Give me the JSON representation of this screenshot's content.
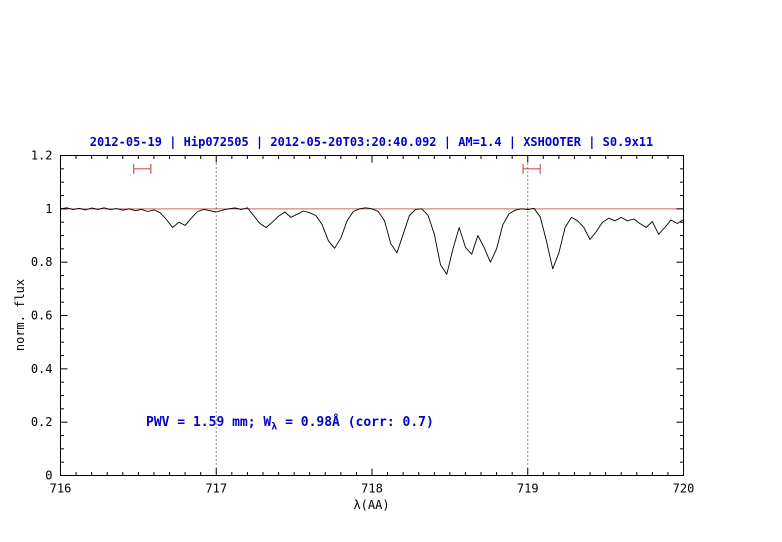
{
  "chart_data": {
    "type": "line",
    "title": "2012-05-19 | Hip072505 | 2012-05-20T03:20:40.092 | AM=1.4 | XSHOOTER | S0.9x11",
    "xlabel": "λ(AA)",
    "ylabel": "norm. flux",
    "xlim": [
      716,
      720
    ],
    "ylim": [
      0,
      1.2
    ],
    "x_ticks": [
      716,
      717,
      718,
      719,
      720
    ],
    "x_tick_labels": [
      "716",
      "717",
      "718",
      "719",
      "720"
    ],
    "y_ticks": [
      0,
      0.2,
      0.4,
      0.6,
      0.8,
      1,
      1.2
    ],
    "y_tick_labels": [
      "0",
      "0.2",
      "0.4",
      "0.6",
      "0.8",
      "1",
      "1.2"
    ],
    "grid": "off",
    "legend": "none",
    "colors": {
      "title": "#0000cc",
      "annotation": "#0000cc",
      "reference_line": "#cc6666",
      "interval_marker": "#cc5555",
      "spectrum": "#000000"
    },
    "reference_line": {
      "y": 1.0,
      "color": "#cc6666"
    },
    "dotted_vlines": [
      717,
      719
    ],
    "interval_markers": [
      {
        "x1": 716.47,
        "x2": 716.58,
        "y": 1.15
      },
      {
        "x1": 718.97,
        "x2": 719.08,
        "y": 1.15
      }
    ],
    "annotation": {
      "part1": "PWV = 1.59 mm; W",
      "sub": "λ",
      "part2": " = 0.98Å (corr: 0.7)",
      "x": 716.55,
      "y": 0.2
    },
    "series": [
      {
        "name": "spectrum",
        "color": "#000000",
        "points": [
          [
            716.0,
            1.0
          ],
          [
            716.04,
            1.004
          ],
          [
            716.08,
            0.997
          ],
          [
            716.12,
            1.002
          ],
          [
            716.16,
            0.996
          ],
          [
            716.2,
            1.003
          ],
          [
            716.24,
            0.998
          ],
          [
            716.28,
            1.004
          ],
          [
            716.32,
            0.997
          ],
          [
            716.36,
            1.001
          ],
          [
            716.4,
            0.995
          ],
          [
            716.44,
            1.0
          ],
          [
            716.48,
            0.993
          ],
          [
            716.52,
            0.998
          ],
          [
            716.56,
            0.99
          ],
          [
            716.6,
            0.996
          ],
          [
            716.64,
            0.985
          ],
          [
            716.68,
            0.96
          ],
          [
            716.72,
            0.93
          ],
          [
            716.76,
            0.95
          ],
          [
            716.8,
            0.938
          ],
          [
            716.84,
            0.965
          ],
          [
            716.88,
            0.99
          ],
          [
            716.92,
            0.998
          ],
          [
            716.96,
            0.993
          ],
          [
            717.0,
            0.988
          ],
          [
            717.04,
            0.995
          ],
          [
            717.08,
            1.0
          ],
          [
            717.12,
            1.003
          ],
          [
            717.16,
            0.998
          ],
          [
            717.2,
            1.004
          ],
          [
            717.24,
            0.975
          ],
          [
            717.28,
            0.945
          ],
          [
            717.32,
            0.93
          ],
          [
            717.36,
            0.95
          ],
          [
            717.4,
            0.972
          ],
          [
            717.44,
            0.988
          ],
          [
            717.48,
            0.968
          ],
          [
            717.52,
            0.98
          ],
          [
            717.56,
            0.992
          ],
          [
            717.6,
            0.985
          ],
          [
            717.64,
            0.975
          ],
          [
            717.68,
            0.94
          ],
          [
            717.72,
            0.88
          ],
          [
            717.76,
            0.852
          ],
          [
            717.8,
            0.89
          ],
          [
            717.84,
            0.955
          ],
          [
            717.88,
            0.99
          ],
          [
            717.92,
            1.0
          ],
          [
            717.96,
            1.004
          ],
          [
            718.0,
            1.0
          ],
          [
            718.04,
            0.99
          ],
          [
            718.08,
            0.955
          ],
          [
            718.12,
            0.87
          ],
          [
            718.16,
            0.835
          ],
          [
            718.2,
            0.905
          ],
          [
            718.24,
            0.975
          ],
          [
            718.28,
            0.998
          ],
          [
            718.32,
            1.0
          ],
          [
            718.36,
            0.975
          ],
          [
            718.4,
            0.905
          ],
          [
            718.44,
            0.79
          ],
          [
            718.48,
            0.755
          ],
          [
            718.52,
            0.85
          ],
          [
            718.56,
            0.93
          ],
          [
            718.6,
            0.855
          ],
          [
            718.64,
            0.83
          ],
          [
            718.68,
            0.9
          ],
          [
            718.72,
            0.855
          ],
          [
            718.76,
            0.8
          ],
          [
            718.8,
            0.85
          ],
          [
            718.84,
            0.94
          ],
          [
            718.88,
            0.982
          ],
          [
            718.92,
            0.995
          ],
          [
            718.96,
            1.0
          ],
          [
            719.0,
            0.997
          ],
          [
            719.04,
            1.002
          ],
          [
            719.08,
            0.97
          ],
          [
            719.12,
            0.88
          ],
          [
            719.16,
            0.775
          ],
          [
            719.2,
            0.835
          ],
          [
            719.24,
            0.93
          ],
          [
            719.28,
            0.968
          ],
          [
            719.32,
            0.955
          ],
          [
            719.36,
            0.93
          ],
          [
            719.4,
            0.885
          ],
          [
            719.44,
            0.915
          ],
          [
            719.48,
            0.95
          ],
          [
            719.52,
            0.965
          ],
          [
            719.56,
            0.955
          ],
          [
            719.6,
            0.968
          ],
          [
            719.64,
            0.955
          ],
          [
            719.68,
            0.962
          ],
          [
            719.72,
            0.945
          ],
          [
            719.76,
            0.93
          ],
          [
            719.8,
            0.952
          ],
          [
            719.84,
            0.905
          ],
          [
            719.88,
            0.93
          ],
          [
            719.92,
            0.958
          ],
          [
            719.96,
            0.945
          ],
          [
            720.0,
            0.96
          ]
        ]
      }
    ]
  }
}
